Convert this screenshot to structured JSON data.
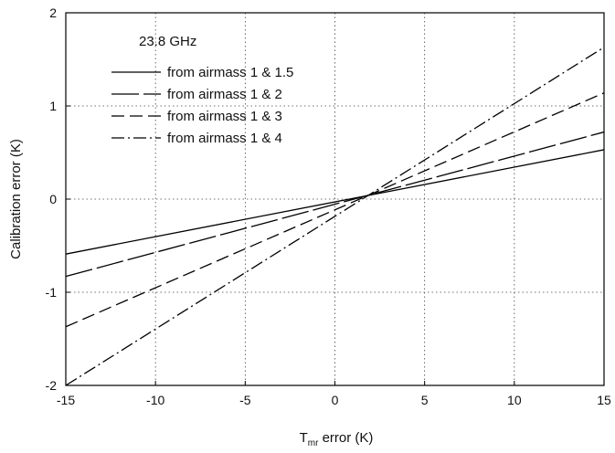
{
  "chart_data": {
    "type": "line",
    "title": "",
    "annotation": "23.8 GHz",
    "xlabel_main": "T",
    "xlabel_sub": "mr",
    "xlabel_rest": " error  (K)",
    "ylabel": "Calibration error  (K)",
    "xlim": [
      -15,
      15
    ],
    "ylim": [
      -2,
      2
    ],
    "grid": true,
    "grid_style": "dotted",
    "legend_position": "top-left",
    "x_ticks": [
      -15,
      -10,
      -5,
      0,
      5,
      10,
      15
    ],
    "x_tick_labels": [
      "-15",
      "-10",
      "-5",
      "0",
      "5",
      "10",
      "15"
    ],
    "y_ticks": [
      -2,
      -1,
      0,
      1,
      2
    ],
    "y_tick_labels": [
      "-2",
      "-1",
      "0",
      "1",
      "2"
    ],
    "series": [
      {
        "name": "from airmass 1 & 1.5",
        "style": "solid",
        "x": [
          -15,
          15
        ],
        "y": [
          -0.59,
          0.53
        ]
      },
      {
        "name": "from airmass 1 & 2",
        "style": "long-dash",
        "x": [
          -15,
          15
        ],
        "y": [
          -0.83,
          0.72
        ]
      },
      {
        "name": "from airmass 1 & 3",
        "style": "dash",
        "x": [
          -15,
          15
        ],
        "y": [
          -1.37,
          1.14
        ]
      },
      {
        "name": "from airmass 1 & 4",
        "style": "dash-dot",
        "x": [
          -15,
          15
        ],
        "y": [
          -2.0,
          1.63
        ]
      }
    ]
  }
}
